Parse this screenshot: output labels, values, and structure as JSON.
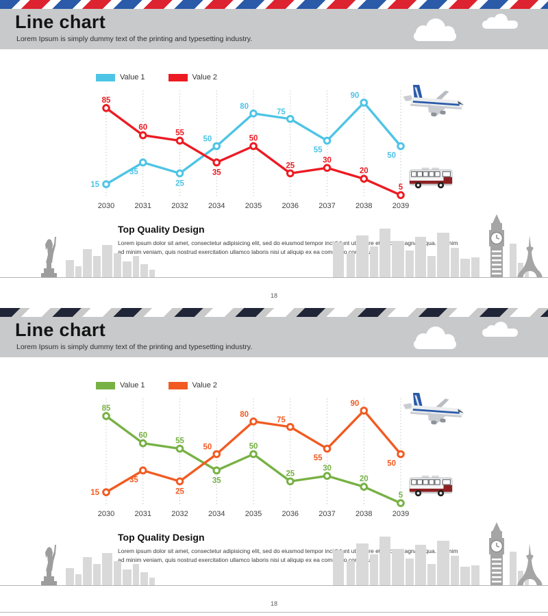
{
  "slides": [
    {
      "title": "Line chart",
      "subtitle": "Lorem Ipsum is simply dummy text of the printing and typesetting industry.",
      "section": {
        "title": "Top Quality Design",
        "body": "Lorem ipsum dolor sit amet, consectetur adipisicing elit, sed do eiusmod tempor incididunt ut labore et dolore magna aliqua. Ut enim ad minim veniam, quis nostrud exercitation ullamco laboris nisi ut aliquip ex ea commodo consequat."
      },
      "page_number": "18"
    },
    {
      "title": "Line chart",
      "subtitle": "Lorem Ipsum is simply dummy text of the printing and typesetting industry.",
      "section": {
        "title": "Top Quality Design",
        "body": "Lorem ipsum dolor sit amet, consectetur adipisicing elit, sed do eiusmod tempor incididunt ut labore et dolore magna aliqua. Ut enim ad minim veniam, quis nostrud exercitation ullamco laboris nisi ut aliquip ex ea commodo consequat."
      },
      "page_number": "18"
    }
  ],
  "chart_data": [
    {
      "type": "line",
      "categories": [
        "2030",
        "2031",
        "2032",
        "2034",
        "2035",
        "2036",
        "2037",
        "2038",
        "2039"
      ],
      "series": [
        {
          "name": "Value 1",
          "color": "#4ec4e6",
          "values": [
            15,
            35,
            25,
            50,
            80,
            75,
            55,
            90,
            50
          ],
          "label_pos": [
            "left",
            "below-left",
            "below",
            "above-left",
            "above-left",
            "above-left",
            "below-left",
            "above-left",
            "below-left"
          ]
        },
        {
          "name": "Value 2",
          "color": "#ec1b23",
          "values": [
            85,
            60,
            55,
            35,
            50,
            25,
            30,
            20,
            5
          ],
          "label_pos": [
            "above",
            "above",
            "above",
            "below",
            "above",
            "above",
            "above",
            "above",
            "above"
          ]
        }
      ],
      "ylim": [
        0,
        100
      ],
      "grid": "vertical-dotted",
      "legend_position": "top-left",
      "marker": "open-circle"
    },
    {
      "type": "line",
      "categories": [
        "2030",
        "2031",
        "2032",
        "2034",
        "2035",
        "2036",
        "2037",
        "2038",
        "2039"
      ],
      "series": [
        {
          "name": "Value 1",
          "color": "#77b144",
          "values": [
            85,
            60,
            55,
            35,
            50,
            25,
            30,
            20,
            5
          ],
          "label_pos": [
            "above",
            "above",
            "above",
            "below",
            "above",
            "above",
            "above",
            "above",
            "above"
          ]
        },
        {
          "name": "Value 2",
          "color": "#f15b22",
          "values": [
            15,
            35,
            25,
            50,
            80,
            75,
            55,
            90,
            50
          ],
          "label_pos": [
            "left",
            "below-left",
            "below",
            "above-left",
            "above-left",
            "above-left",
            "below-left",
            "above-left",
            "below-left"
          ]
        }
      ],
      "ylim": [
        0,
        100
      ],
      "grid": "vertical-dotted",
      "legend_position": "top-left",
      "marker": "open-circle"
    }
  ]
}
